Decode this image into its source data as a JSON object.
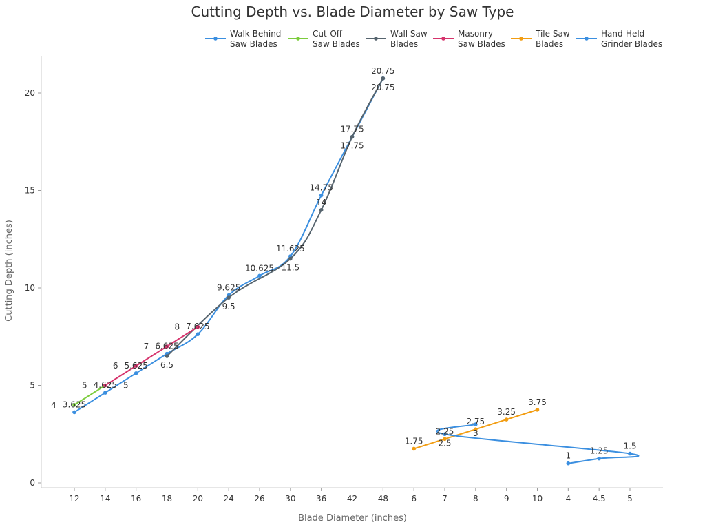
{
  "chart_data": {
    "type": "line",
    "title": "Cutting Depth vs. Blade Diameter by Saw Type",
    "xlabel": "Blade Diameter (inches)",
    "ylabel": "Cutting Depth (inches)",
    "categories": [
      "12",
      "14",
      "16",
      "18",
      "20",
      "24",
      "26",
      "30",
      "36",
      "42",
      "48",
      "6",
      "7",
      "8",
      "9",
      "10",
      "4",
      "4.5",
      "5"
    ],
    "ylim": [
      -0.3,
      22
    ],
    "yticks": [
      0,
      5,
      10,
      15,
      20
    ],
    "grid": false,
    "legend_placement": "top-right",
    "series": [
      {
        "name": "Walk-Behind Saw Blades",
        "color": "#3b8fe0",
        "x": [
          "12",
          "14",
          "16",
          "18",
          "20",
          "24",
          "26",
          "30",
          "36",
          "42",
          "48"
        ],
        "values": [
          3.625,
          4.625,
          5.625,
          6.625,
          7.625,
          9.625,
          10.625,
          11.625,
          14.75,
          17.75,
          20.75
        ]
      },
      {
        "name": "Cut-Off Saw Blades",
        "color": "#7ccc3c",
        "x": [
          "12",
          "14"
        ],
        "values": [
          4.0,
          5.0
        ]
      },
      {
        "name": "Wall Saw Blades",
        "color": "#56646e",
        "x": [
          "18",
          "24",
          "30",
          "36",
          "42",
          "48"
        ],
        "values": [
          6.5,
          9.5,
          11.5,
          14.0,
          17.75,
          20.75
        ]
      },
      {
        "name": "Masonry Saw Blades",
        "color": "#d6336c",
        "x": [
          "14",
          "16",
          "18",
          "20"
        ],
        "values": [
          5.0,
          6.0,
          7.0,
          8.0
        ]
      },
      {
        "name": "Tile Saw Blades",
        "color": "#f29d12",
        "x": [
          "6",
          "7",
          "8",
          "9",
          "10"
        ],
        "values": [
          1.75,
          2.25,
          2.75,
          3.25,
          3.75
        ]
      },
      {
        "name": "Hand-Held Grinder Blades",
        "color": "#3b8fe0",
        "x": [
          "4",
          "4.5",
          "5",
          "7",
          "8"
        ],
        "values": [
          1.0,
          1.25,
          1.5,
          2.5,
          3.0
        ]
      }
    ]
  }
}
